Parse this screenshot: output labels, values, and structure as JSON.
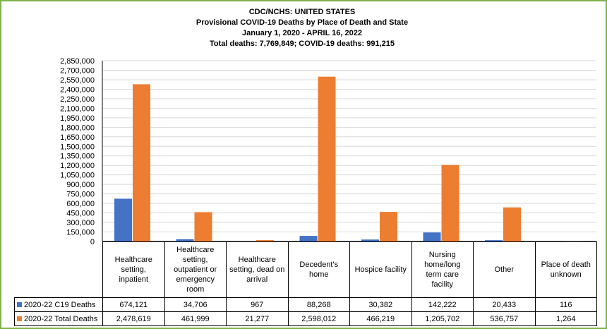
{
  "title_lines": [
    "CDC/NCHS: UNITED STATES",
    "Provisional COVID-19 Deaths by Place of Death and State",
    "January 1, 2020 - APRIL 16, 2022",
    "Total deaths: 7,769,849; COVID-19 deaths: 991,215"
  ],
  "colors": {
    "c19": "#4472c4",
    "total": "#ed7d31",
    "grid": "#d9d9d9",
    "border": "#7fb34a"
  },
  "chart_data": {
    "type": "bar",
    "title": "CDC/NCHS: UNITED STATES — Provisional COVID-19 Deaths by Place of Death and State",
    "categories": [
      "Healthcare setting, inpatient",
      "Healthcare setting, outpatient or emergency room",
      "Healthcare setting, dead on arrival",
      "Decedent's home",
      "Hospice facility",
      "Nursing home/long term care facility",
      "Other",
      "Place of death unknown"
    ],
    "category_label_lines": [
      [
        "Healthcare",
        "setting,",
        "inpatient"
      ],
      [
        "Healthcare",
        "setting,",
        "outpatient or",
        "emergency",
        "room"
      ],
      [
        "Healthcare",
        "setting, dead on",
        "arrival"
      ],
      [
        "Decedent's",
        "home"
      ],
      [
        "Hospice facility"
      ],
      [
        "Nursing",
        "home/long",
        "term care",
        "facility"
      ],
      [
        "Other"
      ],
      [
        "Place of death",
        "unknown"
      ]
    ],
    "series": [
      {
        "name": "2020-22 C19 Deaths",
        "values": [
          674121,
          34706,
          967,
          88268,
          30382,
          142222,
          20433,
          116
        ]
      },
      {
        "name": "2020-22 Total Deaths",
        "values": [
          2478619,
          461999,
          21277,
          2598012,
          466219,
          1205702,
          536757,
          1264
        ]
      }
    ],
    "value_labels": [
      [
        "674,121",
        "34,706",
        "967",
        "88,268",
        "30,382",
        "142,222",
        "20,433",
        "116"
      ],
      [
        "2,478,619",
        "461,999",
        "21,277",
        "2,598,012",
        "466,219",
        "1,205,702",
        "536,757",
        "1,264"
      ]
    ],
    "ylim": [
      0,
      2850000
    ],
    "ytick_step": 150000,
    "grid": true,
    "legend": "data table"
  }
}
